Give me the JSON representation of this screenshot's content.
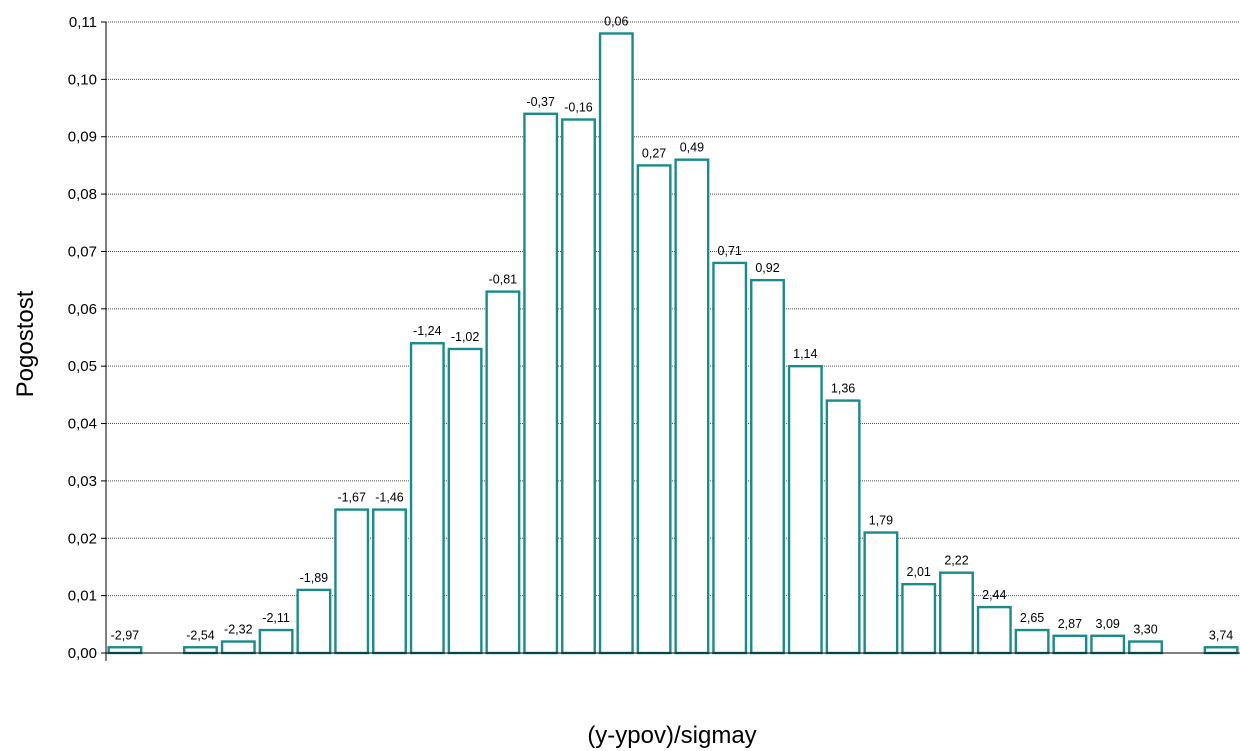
{
  "chart_data": {
    "type": "bar",
    "title": "",
    "xlabel": "(y-ypov)/sigmay",
    "ylabel": "Pogostost",
    "ylim": [
      0,
      0.11
    ],
    "y_ticks": [
      0,
      0.01,
      0.02,
      0.03,
      0.04,
      0.05,
      0.06,
      0.07,
      0.08,
      0.09,
      0.1,
      0.11
    ],
    "y_tick_labels": [
      "0,00",
      "0,01",
      "0,02",
      "0,03",
      "0,04",
      "0,05",
      "0,06",
      "0,07",
      "0,08",
      "0,09",
      "0,10",
      "0,11"
    ],
    "grid": true,
    "legend": "none",
    "categories": [
      "-2,97",
      "",
      "-2,54",
      "-2,32",
      "-2,11",
      "-1,89",
      "-1,67",
      "-1,46",
      "-1,24",
      "-1,02",
      "-0,81",
      "-0,37",
      "-0,16",
      "0,06",
      "0,27",
      "0,49",
      "0,71",
      "0,92",
      "1,14",
      "1,36",
      "1,79",
      "2,01",
      "2,22",
      "2,44",
      "2,65",
      "2,87",
      "3,09",
      "3,30",
      "",
      "3,74"
    ],
    "values": [
      0.001,
      0,
      0.001,
      0.002,
      0.004,
      0.011,
      0.025,
      0.025,
      0.054,
      0.053,
      0.063,
      0.094,
      0.093,
      0.108,
      0.085,
      0.086,
      0.068,
      0.065,
      0.05,
      0.044,
      0.021,
      0.012,
      0.014,
      0.008,
      0.004,
      0.003,
      0.003,
      0.002,
      0,
      0.001
    ],
    "colors": {
      "bar_stroke": "#1a8a8a",
      "bar_fill": "#ffffff",
      "grid": "#555555",
      "axis": "#000000"
    }
  }
}
